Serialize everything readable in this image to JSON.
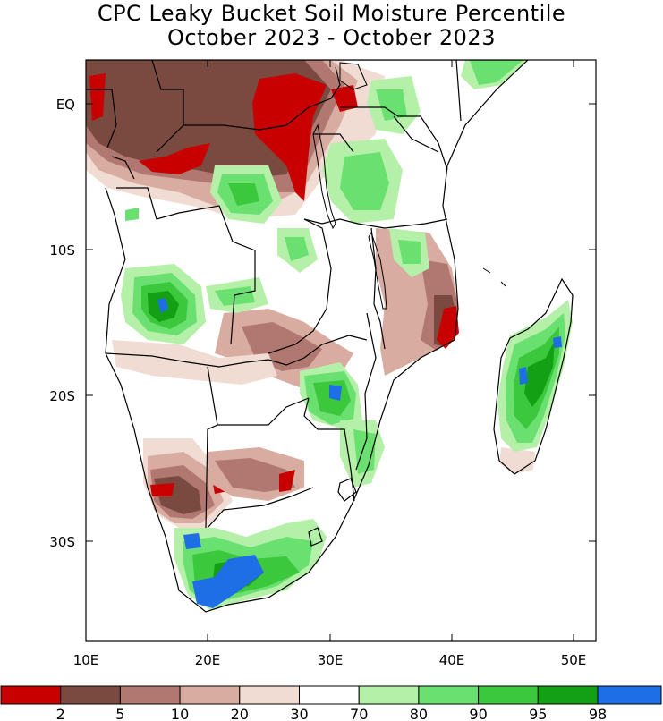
{
  "title": {
    "line1": "CPC Leaky Bucket Soil Moisture Percentile",
    "line2": "October 2023 - October 2023"
  },
  "axes": {
    "x_ticks": [
      "10E",
      "20E",
      "30E",
      "40E",
      "50E"
    ],
    "y_ticks": [
      "EQ",
      "10S",
      "20S",
      "30S"
    ]
  },
  "legend": {
    "colors": [
      "#c80000",
      "#7a4a40",
      "#b07870",
      "#d8aca0",
      "#f0dcd2",
      "#ffffff",
      "#b4f0a8",
      "#6ae070",
      "#3cc83c",
      "#14a014",
      "#1e6ee6"
    ],
    "labels": [
      "2",
      "5",
      "10",
      "20",
      "30",
      "70",
      "80",
      "90",
      "95",
      "98"
    ]
  },
  "map_colors": {
    "dry2": "#c80000",
    "dry5": "#7a4a40",
    "dry10": "#b07870",
    "dry20": "#d8aca0",
    "dry30": "#f0dcd2",
    "wet80": "#b4f0a8",
    "wet90": "#6ae070",
    "wet95": "#3cc83c",
    "wet98": "#14a014",
    "wet99": "#1e6ee6"
  }
}
